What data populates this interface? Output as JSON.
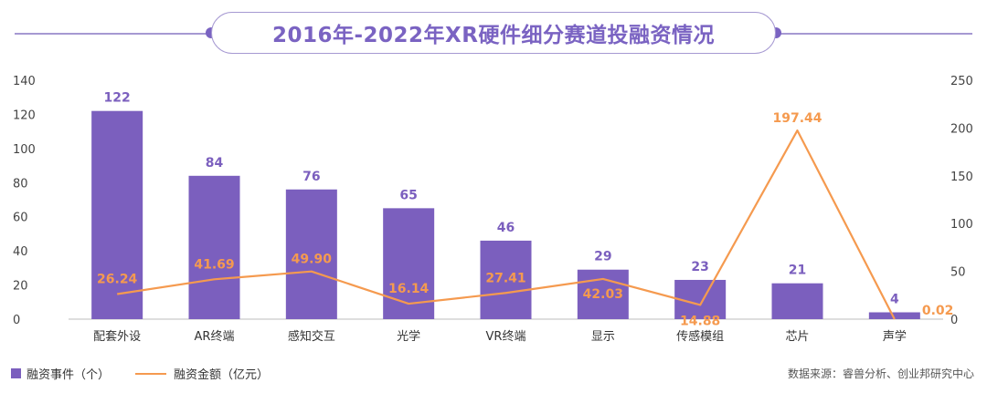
{
  "title": "2016年-2022年XR硬件细分赛道投融资情况",
  "colors": {
    "bar": "#7b5fbe",
    "line": "#f59a4f",
    "title": "#7a63c2",
    "accent": "#a699d2"
  },
  "legend": {
    "bar_label": "融资事件（个）",
    "line_label": "融资金额（亿元）"
  },
  "source": "数据来源：睿兽分析、创业邦研究中心",
  "chart_data": {
    "type": "bar+line",
    "title": "2016年-2022年XR硬件细分赛道投融资情况",
    "categories": [
      "配套外设",
      "AR终端",
      "感知交互",
      "光学",
      "VR终端",
      "显示",
      "传感模组",
      "芯片",
      "声学"
    ],
    "series": [
      {
        "name": "融资事件（个）",
        "type": "bar",
        "axis": "left",
        "values": [
          122,
          84,
          76,
          65,
          46,
          29,
          23,
          21,
          4
        ],
        "labels": [
          "122",
          "84",
          "76",
          "65",
          "46",
          "29",
          "23",
          "21",
          "4"
        ]
      },
      {
        "name": "融资金额（亿元）",
        "type": "line",
        "axis": "right",
        "values": [
          26.24,
          41.69,
          49.9,
          16.14,
          27.41,
          42.03,
          14.88,
          197.44,
          0.02
        ],
        "labels": [
          "26.24",
          "41.69",
          "49.90",
          "16.14",
          "27.41",
          "42.03",
          "14.88",
          "197.44",
          "0.02"
        ]
      }
    ],
    "y_left": {
      "min": 0,
      "max": 140,
      "ticks": [
        "0",
        "20",
        "40",
        "60",
        "80",
        "100",
        "120",
        "140"
      ]
    },
    "y_right": {
      "min": 0,
      "max": 250,
      "ticks": [
        "0",
        "50",
        "100",
        "150",
        "200",
        "250"
      ]
    },
    "grid": false,
    "legend_position": "bottom-left"
  }
}
